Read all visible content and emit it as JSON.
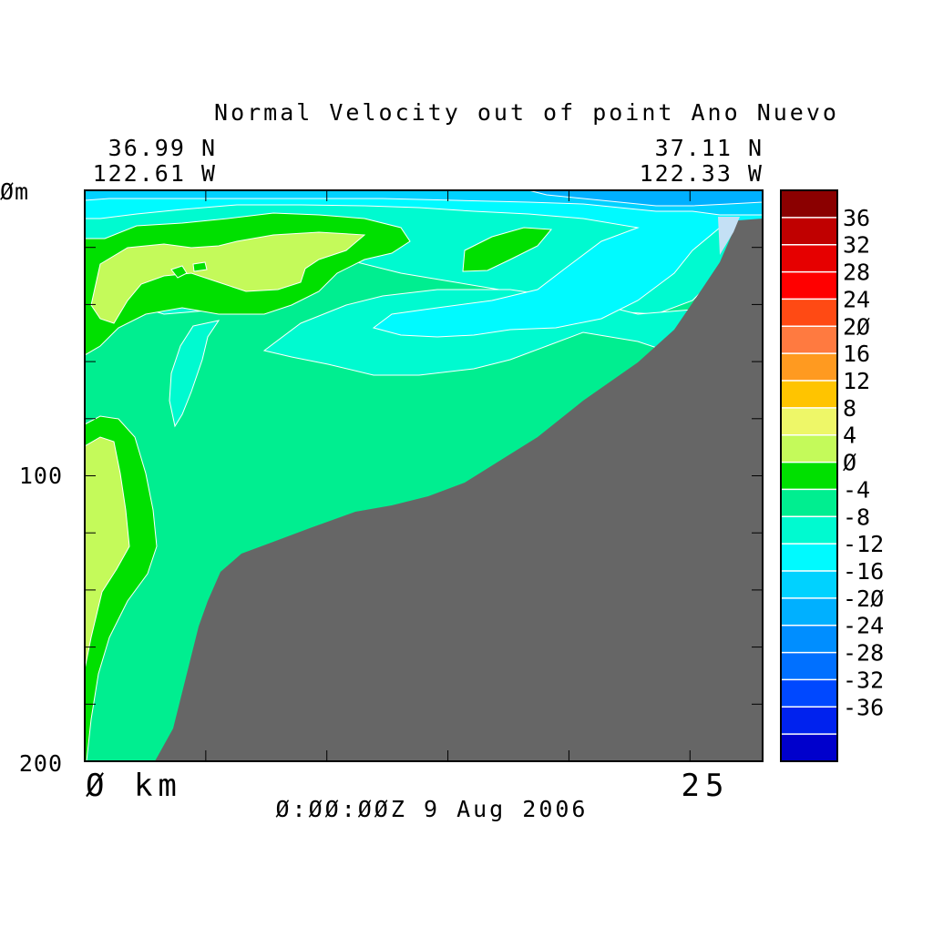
{
  "chart_data": {
    "type": "contour-section",
    "title": "Normal Velocity out of point Ano Nuevo",
    "start_lat": "36.99 N",
    "start_lon": "122.61 W",
    "end_lat": "37.11 N",
    "end_lon": "122.33 W",
    "ylabel_top": "Øm",
    "y_ticklabels": [
      "100",
      "200"
    ],
    "y_range": [
      0,
      200
    ],
    "x_start_label": "Ø km",
    "x_end_label": "25",
    "x_range_km": [
      0,
      28
    ],
    "timestamp": "Ø:ØØ:ØØZ   9 Aug 2006",
    "colorbar": {
      "levels": [
        "36",
        "32",
        "28",
        "24",
        "2Ø",
        "16",
        "12",
        "8",
        "4",
        "Ø",
        "-4",
        "-8",
        "-12",
        "-16",
        "-2Ø",
        "-24",
        "-28",
        "-32",
        "-36"
      ],
      "colors": [
        "#8b0000",
        "#c00000",
        "#e60000",
        "#ff0000",
        "#ff4a14",
        "#ff7a40",
        "#ff9a20",
        "#ffc400",
        "#eef768",
        "#c4fa5a",
        "#00e000",
        "#00ee90",
        "#00fad0",
        "#00faff",
        "#00d2ff",
        "#00b0ff",
        "#008eff",
        "#0070ff",
        "#0048ff",
        "#0022ee",
        "#0000cc"
      ]
    },
    "colors": {
      "bathymetry": "#666666",
      "background_field": "#00ee90",
      "positive_low": "#00e000",
      "positive_mid": "#c4fa5a",
      "negative_low": "#00fad0",
      "negative_mid": "#00faff",
      "negative_high": "#00d2ff",
      "negative_peak": "#00b0ff",
      "contour_line": "#ffffff"
    }
  }
}
